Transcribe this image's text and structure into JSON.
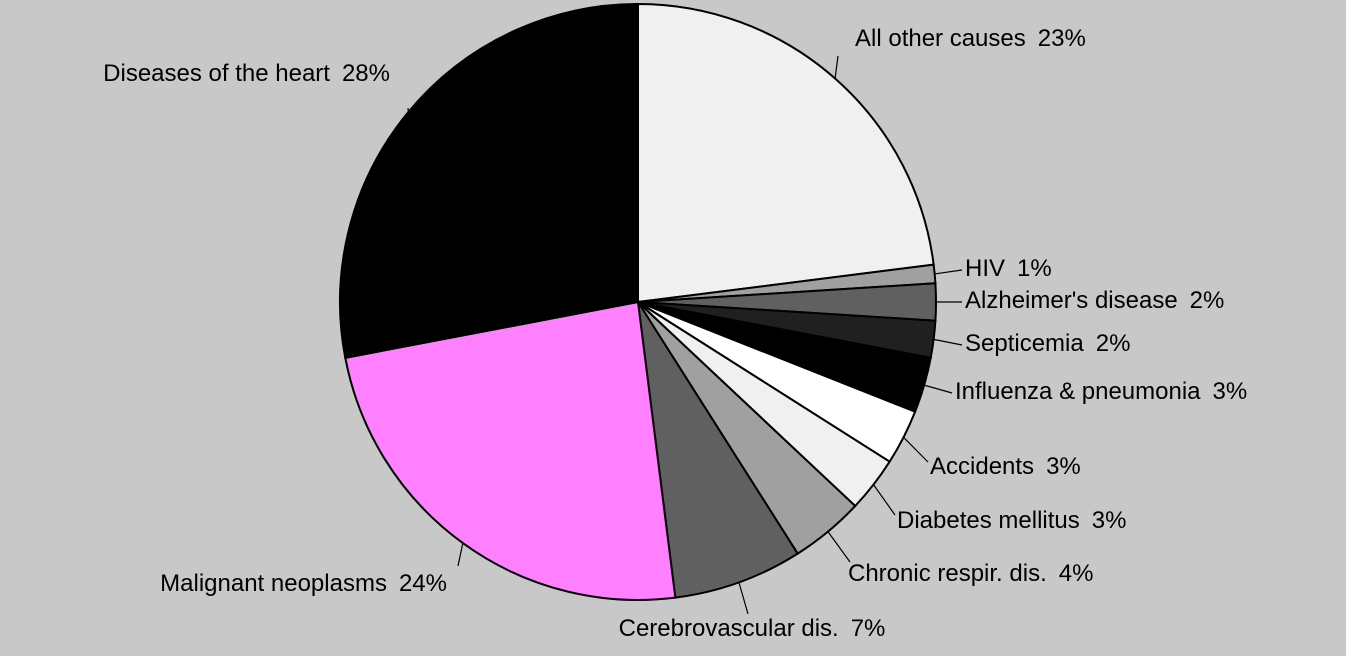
{
  "chart_data": {
    "type": "pie",
    "categories": [
      "All other causes",
      "HIV",
      "Alzheimer's disease",
      "Septicemia",
      "Influenza & pneumonia",
      "Accidents",
      "Diabetes mellitus",
      "Chronic respir. dis.",
      "Cerebrovascular dis.",
      "Malignant neoplasms",
      "Diseases of the heart"
    ],
    "values": [
      23,
      1,
      2,
      2,
      3,
      3,
      3,
      4,
      7,
      24,
      28
    ],
    "value_labels": [
      "23%",
      "1%",
      "2%",
      "2%",
      "3%",
      "3%",
      "3%",
      "4%",
      "7%",
      "24%",
      "28%"
    ],
    "colors": [
      "#f0f0f0",
      "#a0a0a0",
      "#606060",
      "#202020",
      "#000000",
      "#ffffff",
      "#f0f0f0",
      "#a0a0a0",
      "#606060",
      "#ff80ff",
      "#000000"
    ]
  }
}
